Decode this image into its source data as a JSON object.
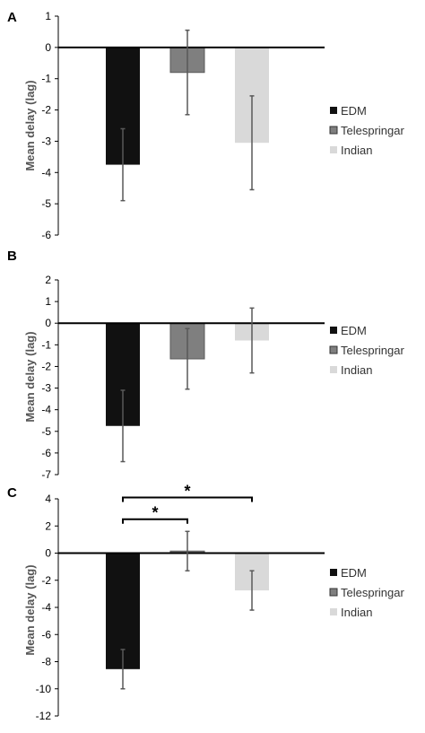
{
  "colors": {
    "EDM": "#111111",
    "Telespringar": "#7f7f7f",
    "Indian": "#d9d9d9",
    "error": "#595959"
  },
  "chart_data": [
    {
      "panel": "A",
      "type": "bar",
      "categories": [
        "EDM",
        "Telespringar",
        "Indian"
      ],
      "values": [
        -3.75,
        -0.8,
        -3.05
      ],
      "errors": [
        1.15,
        1.35,
        1.5
      ],
      "ylabel": "Mean delay (lag)",
      "ylim": [
        -6,
        1
      ],
      "yticks": [
        "1",
        "0",
        "-1",
        "-2",
        "-3",
        "-4",
        "-5",
        "-6"
      ],
      "legend": [
        "EDM",
        "Telespringar",
        "Indian"
      ],
      "legend_position": "right",
      "grid": false,
      "significance": []
    },
    {
      "panel": "B",
      "type": "bar",
      "categories": [
        "EDM",
        "Telespringar",
        "Indian"
      ],
      "values": [
        -4.75,
        -1.65,
        -0.8
      ],
      "errors": [
        1.65,
        1.4,
        1.5
      ],
      "ylabel": "Mean delay (lag)",
      "ylim": [
        -7,
        2
      ],
      "yticks": [
        "2",
        "1",
        "0",
        "-1",
        "-2",
        "-3",
        "-4",
        "-5",
        "-6",
        "-7"
      ],
      "legend": [
        "EDM",
        "Telespringar",
        "Indian"
      ],
      "legend_position": "right",
      "grid": false,
      "significance": []
    },
    {
      "panel": "C",
      "type": "bar",
      "categories": [
        "EDM",
        "Telespringar",
        "Indian"
      ],
      "values": [
        -8.55,
        0.15,
        -2.75
      ],
      "errors": [
        1.45,
        1.45,
        1.45
      ],
      "ylabel": "Mean delay (lag)",
      "ylim": [
        -12,
        4
      ],
      "yticks": [
        "4",
        "2",
        "0",
        "-2",
        "-4",
        "-6",
        "-8",
        "-10",
        "-12"
      ],
      "legend": [
        "EDM",
        "Telespringar",
        "Indian"
      ],
      "legend_position": "right",
      "grid": false,
      "significance": [
        {
          "from": 0,
          "to": 1,
          "level": 2.5,
          "label": "*"
        },
        {
          "from": 0,
          "to": 2,
          "level": 4.1,
          "label": "*"
        }
      ]
    }
  ]
}
